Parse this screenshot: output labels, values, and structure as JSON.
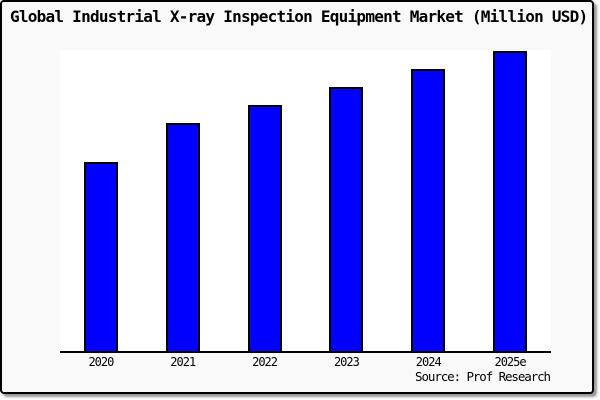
{
  "chart_data": {
    "type": "bar",
    "title": "Global Industrial X-ray Inspection Equipment Market (Million USD)",
    "categories": [
      "2020",
      "2021",
      "2022",
      "2023",
      "2024",
      "2025e"
    ],
    "values": [
      63,
      76,
      82,
      88,
      94,
      100
    ],
    "xlabel": "",
    "ylabel": "",
    "ylim": [
      0,
      100
    ],
    "grid": false,
    "legend": false,
    "bar_color": "#0000ff",
    "bar_edge_color": "#000000",
    "plot_background": "#ffffff",
    "figure_background": "#f9f9f9",
    "axis_color": "#000000"
  },
  "footer": {
    "source": "Source: Prof Research"
  }
}
